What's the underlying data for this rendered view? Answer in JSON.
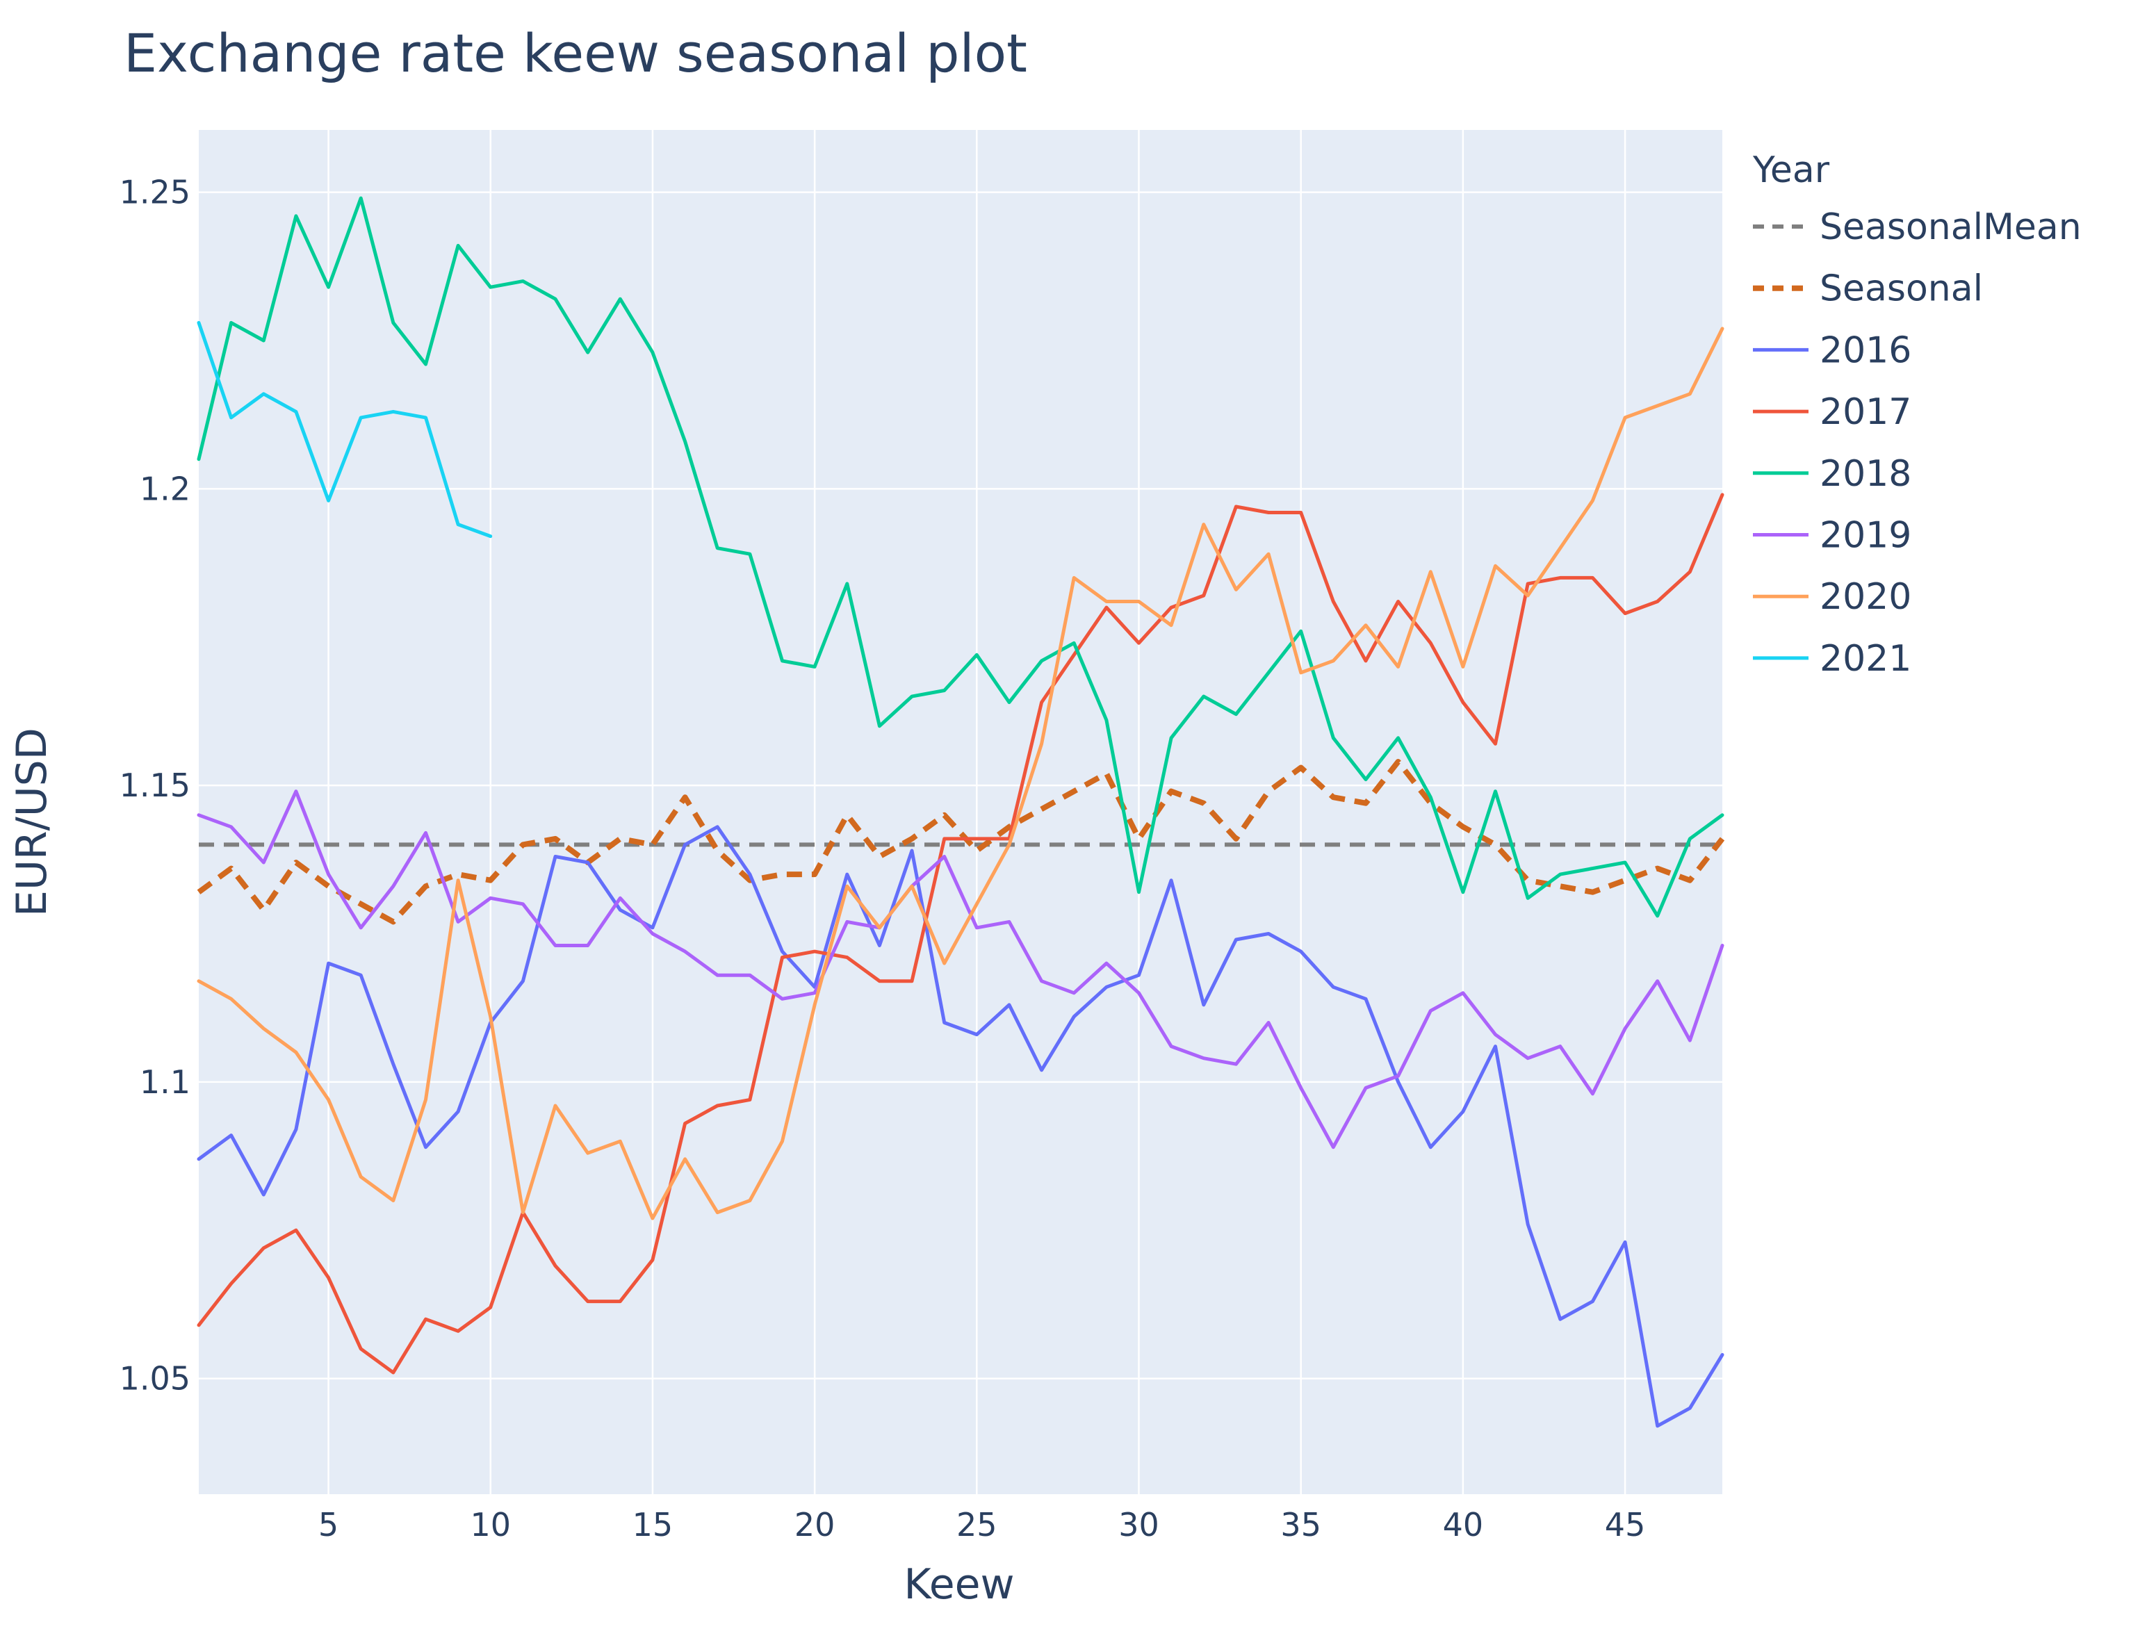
{
  "chart_data": {
    "type": "line",
    "title": "Exchange rate keew seasonal plot",
    "xlabel": "Keew",
    "ylabel": "EUR/USD",
    "xlim": [
      1,
      48
    ],
    "ylim": [
      1.0305,
      1.2605
    ],
    "xticks": [
      5,
      10,
      15,
      20,
      25,
      30,
      35,
      40,
      45
    ],
    "yticks": [
      1.05,
      1.1,
      1.15,
      1.2,
      1.25
    ],
    "ytick_labels": [
      "1.05",
      "1.1",
      "1.15",
      "1.2",
      "1.25"
    ],
    "grid": true,
    "legend": {
      "title": "Year",
      "position": "right"
    },
    "series": [
      {
        "name": "SeasonalMean",
        "color": "#7f7f7f",
        "dash": "dash",
        "width": 6,
        "x_start": 1,
        "values": [
          1.14,
          1.14,
          1.14,
          1.14,
          1.14,
          1.14,
          1.14,
          1.14,
          1.14,
          1.14,
          1.14,
          1.14,
          1.14,
          1.14,
          1.14,
          1.14,
          1.14,
          1.14,
          1.14,
          1.14,
          1.14,
          1.14,
          1.14,
          1.14,
          1.14,
          1.14,
          1.14,
          1.14,
          1.14,
          1.14,
          1.14,
          1.14,
          1.14,
          1.14,
          1.14,
          1.14,
          1.14,
          1.14,
          1.14,
          1.14,
          1.14,
          1.14,
          1.14,
          1.14,
          1.14,
          1.14,
          1.14,
          1.14
        ]
      },
      {
        "name": "Seasonal",
        "color": "#d2691e",
        "dash": "dash",
        "width": 8,
        "x_start": 1,
        "values": [
          1.132,
          1.136,
          1.129,
          1.137,
          1.133,
          1.13,
          1.127,
          1.133,
          1.135,
          1.134,
          1.14,
          1.141,
          1.137,
          1.141,
          1.14,
          1.148,
          1.139,
          1.134,
          1.135,
          1.135,
          1.145,
          1.138,
          1.141,
          1.145,
          1.139,
          1.143,
          1.146,
          1.149,
          1.152,
          1.141,
          1.149,
          1.147,
          1.141,
          1.149,
          1.153,
          1.148,
          1.147,
          1.154,
          1.147,
          1.143,
          1.14,
          1.134,
          1.133,
          1.132,
          1.134,
          1.136,
          1.134,
          1.141
        ]
      },
      {
        "name": "2016",
        "color": "#636efa",
        "dash": "solid",
        "width": 5,
        "x_start": 1,
        "values": [
          1.087,
          1.091,
          1.081,
          1.092,
          1.12,
          1.118,
          1.103,
          1.089,
          1.095,
          1.11,
          1.117,
          1.138,
          1.137,
          1.129,
          1.126,
          1.14,
          1.143,
          1.135,
          1.122,
          1.116,
          1.135,
          1.123,
          1.139,
          1.11,
          1.108,
          1.113,
          1.102,
          1.111,
          1.116,
          1.118,
          1.134,
          1.113,
          1.124,
          1.125,
          1.122,
          1.116,
          1.114,
          1.1,
          1.089,
          1.095,
          1.106,
          1.076,
          1.06,
          1.063,
          1.073,
          1.042,
          1.045,
          1.054
        ]
      },
      {
        "name": "2017",
        "color": "#ef553b",
        "dash": "solid",
        "width": 5,
        "x_start": 1,
        "values": [
          1.059,
          1.066,
          1.072,
          1.075,
          1.067,
          1.055,
          1.051,
          1.06,
          1.058,
          1.062,
          1.078,
          1.069,
          1.063,
          1.063,
          1.07,
          1.093,
          1.096,
          1.097,
          1.121,
          1.122,
          1.121,
          1.117,
          1.117,
          1.141,
          1.141,
          1.141,
          1.164,
          1.172,
          1.18,
          1.174,
          1.18,
          1.182,
          1.197,
          1.196,
          1.196,
          1.181,
          1.171,
          1.181,
          1.174,
          1.164,
          1.157,
          1.184,
          1.185,
          1.185,
          1.179,
          1.181,
          1.186,
          1.199
        ]
      },
      {
        "name": "2018",
        "color": "#00cc96",
        "dash": "solid",
        "width": 5,
        "x_start": 1,
        "values": [
          1.205,
          1.228,
          1.225,
          1.246,
          1.234,
          1.249,
          1.228,
          1.221,
          1.241,
          1.234,
          1.235,
          1.232,
          1.223,
          1.232,
          1.223,
          1.208,
          1.19,
          1.189,
          1.171,
          1.17,
          1.184,
          1.16,
          1.165,
          1.166,
          1.172,
          1.164,
          1.171,
          1.174,
          1.161,
          1.132,
          1.158,
          1.165,
          1.162,
          1.169,
          1.176,
          1.158,
          1.151,
          1.158,
          1.148,
          1.132,
          1.149,
          1.131,
          1.135,
          1.136,
          1.137,
          1.128,
          1.141,
          1.145
        ]
      },
      {
        "name": "2019",
        "color": "#ab63fa",
        "dash": "solid",
        "width": 5,
        "x_start": 1,
        "values": [
          1.145,
          1.143,
          1.137,
          1.149,
          1.135,
          1.126,
          1.133,
          1.142,
          1.127,
          1.131,
          1.13,
          1.123,
          1.123,
          1.131,
          1.125,
          1.122,
          1.118,
          1.118,
          1.114,
          1.115,
          1.127,
          1.126,
          1.133,
          1.138,
          1.126,
          1.127,
          1.117,
          1.115,
          1.12,
          1.115,
          1.106,
          1.104,
          1.103,
          1.11,
          1.099,
          1.089,
          1.099,
          1.101,
          1.112,
          1.115,
          1.108,
          1.104,
          1.106,
          1.098,
          1.109,
          1.117,
          1.107,
          1.123
        ]
      },
      {
        "name": "2020",
        "color": "#ffa15a",
        "dash": "solid",
        "width": 5,
        "x_start": 1,
        "values": [
          1.117,
          1.114,
          1.109,
          1.105,
          1.097,
          1.084,
          1.08,
          1.097,
          1.134,
          1.111,
          1.078,
          1.096,
          1.088,
          1.09,
          1.077,
          1.087,
          1.078,
          1.08,
          1.09,
          1.113,
          1.133,
          1.126,
          1.133,
          1.12,
          1.13,
          1.14,
          1.157,
          1.185,
          1.181,
          1.181,
          1.177,
          1.194,
          1.183,
          1.189,
          1.169,
          1.171,
          1.177,
          1.17,
          1.186,
          1.17,
          1.187,
          1.182,
          1.19,
          1.198,
          1.212,
          1.214,
          1.216,
          1.227
        ]
      },
      {
        "name": "2021",
        "color": "#19d3f3",
        "dash": "solid",
        "width": 5,
        "x_start": 1,
        "values": [
          1.228,
          1.212,
          1.216,
          1.213,
          1.198,
          1.212,
          1.213,
          1.212,
          1.194,
          1.192
        ]
      }
    ]
  }
}
